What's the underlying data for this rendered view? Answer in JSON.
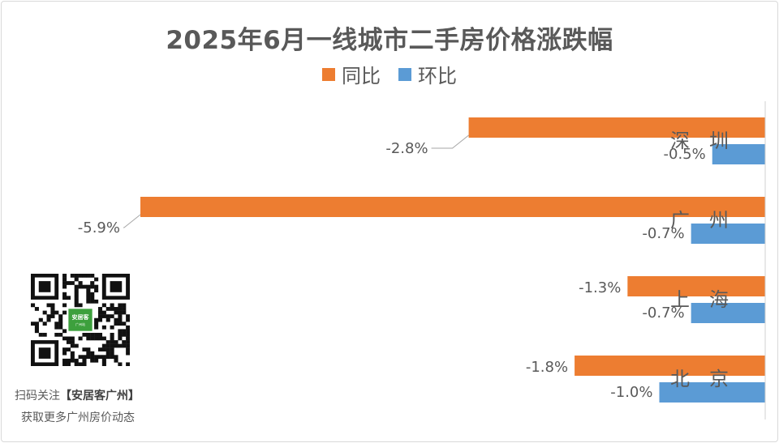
{
  "chart_data": {
    "type": "bar",
    "orientation": "horizontal",
    "title": "2025年6月一线城市二手房价格涨跌幅",
    "categories": [
      "深　圳",
      "广　州",
      "上　海",
      "北　京"
    ],
    "series": [
      {
        "name": "同比",
        "color": "#ED7D31",
        "values": [
          -2.8,
          -5.9,
          -1.3,
          -1.8
        ],
        "labels": [
          "-2.8%",
          "-5.9%",
          "-1.3%",
          "-1.8%"
        ]
      },
      {
        "name": "环比",
        "color": "#5B9BD5",
        "values": [
          -0.5,
          -0.7,
          -0.7,
          -1.0
        ],
        "labels": [
          "-0.5%",
          "-0.7%",
          "-0.7%",
          "-1.0%"
        ]
      }
    ],
    "xlim": [
      -5.9,
      0
    ],
    "grid": false,
    "legend": "top-center"
  },
  "footer": {
    "line1_prefix": "扫码关注",
    "line1_brand": "【安居客广州】",
    "line2": "获取更多广州房价动态"
  },
  "qr": {
    "logo_text": "安居客",
    "logo_sub": "广州站",
    "logo_color": "#3DA03D"
  }
}
